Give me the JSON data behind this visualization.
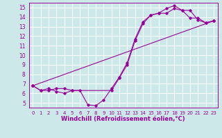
{
  "xlabel": "Windchill (Refroidissement éolien,°C)",
  "xlim": [
    -0.5,
    23.5
  ],
  "ylim": [
    4.5,
    15.5
  ],
  "yticks": [
    5,
    6,
    7,
    8,
    9,
    10,
    11,
    12,
    13,
    14,
    15
  ],
  "xticks": [
    0,
    1,
    2,
    3,
    4,
    5,
    6,
    7,
    8,
    9,
    10,
    11,
    12,
    13,
    14,
    15,
    16,
    17,
    18,
    19,
    20,
    21,
    22,
    23
  ],
  "bg_color": "#cce8e8",
  "line_color": "#990099",
  "grid_color": "#ffffff",
  "line1_x": [
    0,
    1,
    2,
    3,
    4,
    5,
    6,
    7,
    8,
    9,
    10,
    11,
    12,
    13,
    14,
    15,
    16,
    17,
    18,
    19,
    20,
    21,
    22,
    23
  ],
  "line1_y": [
    6.8,
    6.3,
    6.5,
    6.2,
    6.0,
    6.3,
    6.3,
    4.8,
    4.7,
    5.3,
    6.5,
    7.7,
    9.2,
    11.7,
    13.5,
    14.2,
    14.4,
    14.9,
    15.2,
    14.7,
    13.9,
    13.9,
    13.4,
    13.6
  ],
  "line2_x": [
    0,
    1,
    2,
    3,
    4,
    5,
    10,
    11,
    12,
    13,
    14,
    15,
    16,
    17,
    18,
    19,
    20,
    21,
    22,
    23
  ],
  "line2_y": [
    6.8,
    6.3,
    6.3,
    6.5,
    6.5,
    6.3,
    6.3,
    7.6,
    9.0,
    11.5,
    13.3,
    14.2,
    14.4,
    14.4,
    14.9,
    14.7,
    14.7,
    13.7,
    13.4,
    13.6
  ],
  "line3_x": [
    0,
    23
  ],
  "line3_y": [
    6.8,
    13.6
  ]
}
